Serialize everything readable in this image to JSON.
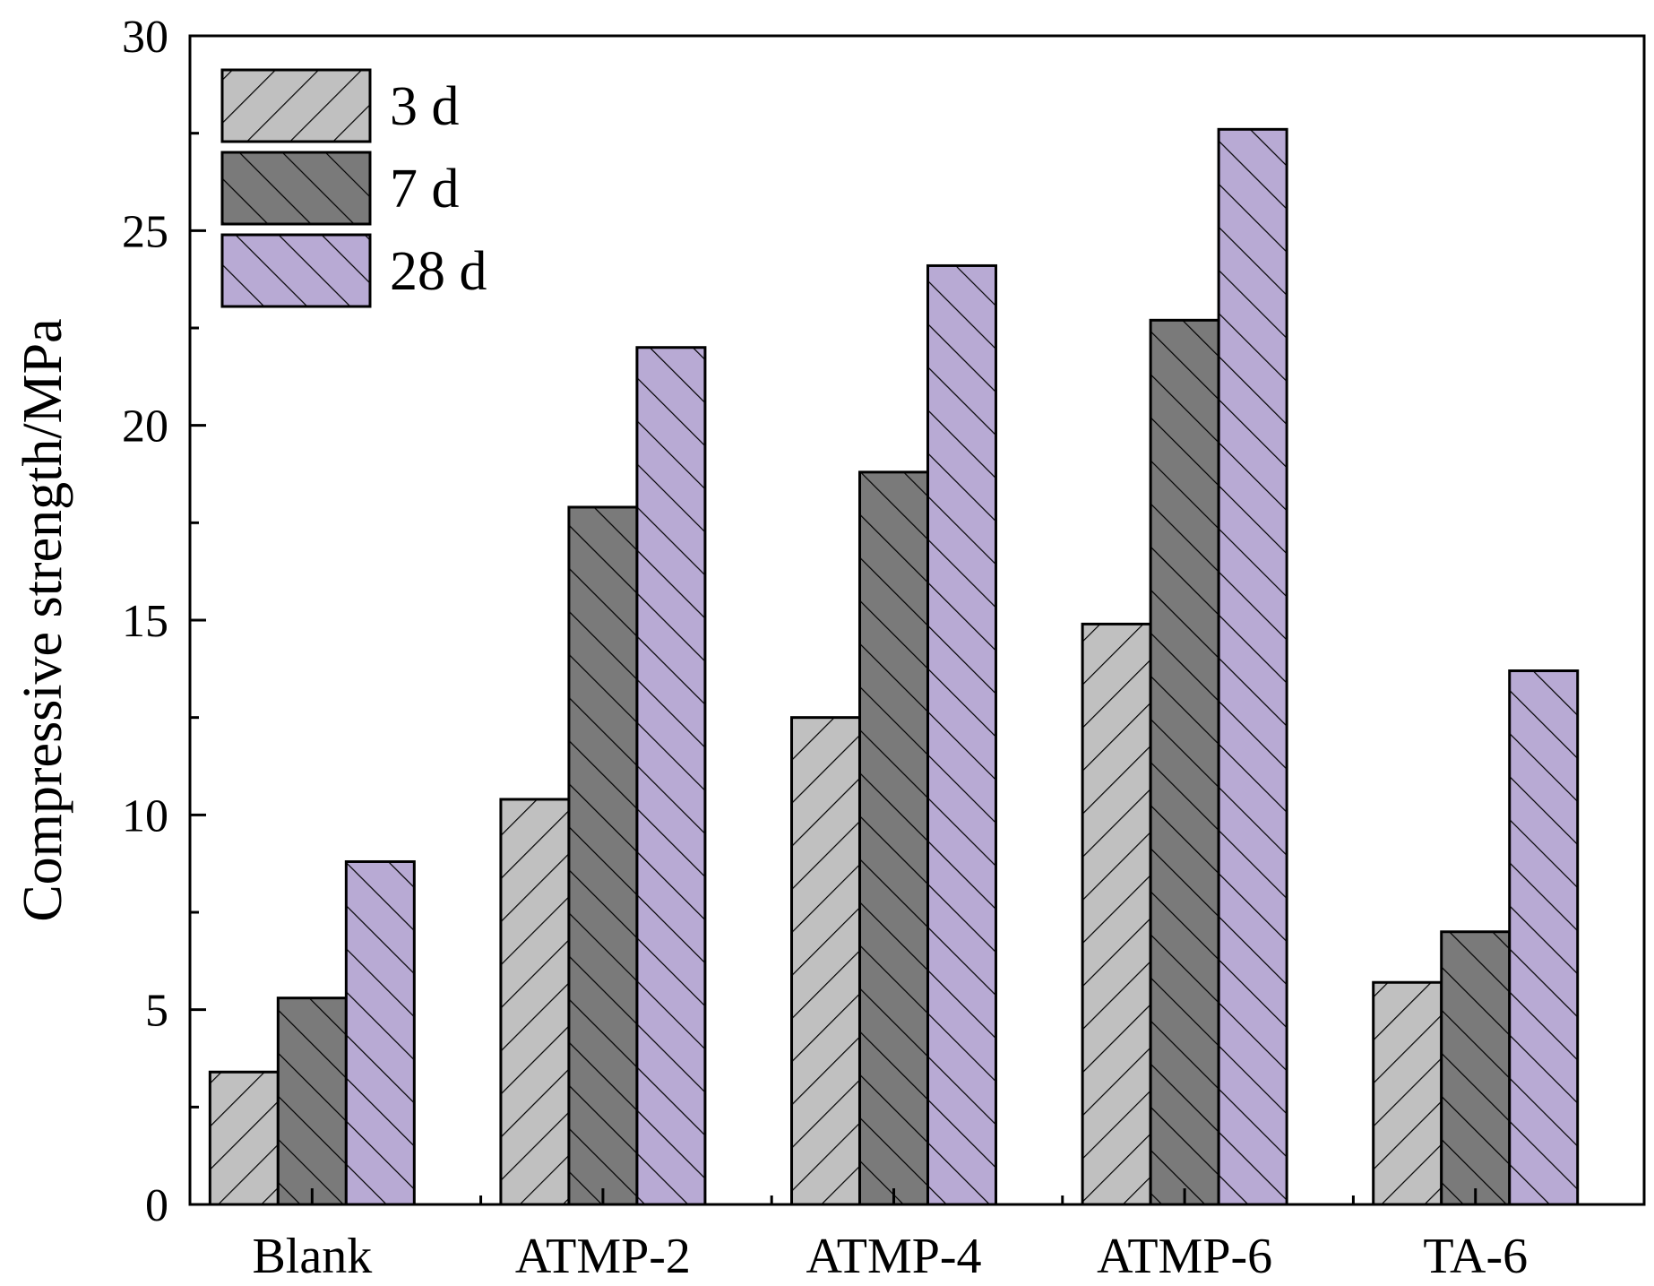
{
  "chart_data": {
    "type": "bar",
    "title": "",
    "xlabel": "",
    "ylabel": "Compressive strength/MPa",
    "ylim": [
      0,
      30
    ],
    "yticks": [
      "0",
      "5",
      "10",
      "15",
      "20",
      "25",
      "30"
    ],
    "categories": [
      "Blank",
      "ATMP-2",
      "ATMP-4",
      "ATMP-6",
      "TA-6"
    ],
    "series": [
      {
        "name": "3 d",
        "color": "#c0c0c0",
        "hatch": "forward",
        "values": [
          3.4,
          10.4,
          12.5,
          14.9,
          5.7
        ]
      },
      {
        "name": "7 d",
        "color": "#7a7a7a",
        "hatch": "backward",
        "values": [
          5.3,
          17.9,
          18.8,
          22.7,
          7.0
        ]
      },
      {
        "name": "28 d",
        "color": "#b8aad4",
        "hatch": "backward",
        "values": [
          8.8,
          22.0,
          24.1,
          27.6,
          13.7
        ]
      }
    ],
    "legend": "top-left",
    "grid": false
  }
}
